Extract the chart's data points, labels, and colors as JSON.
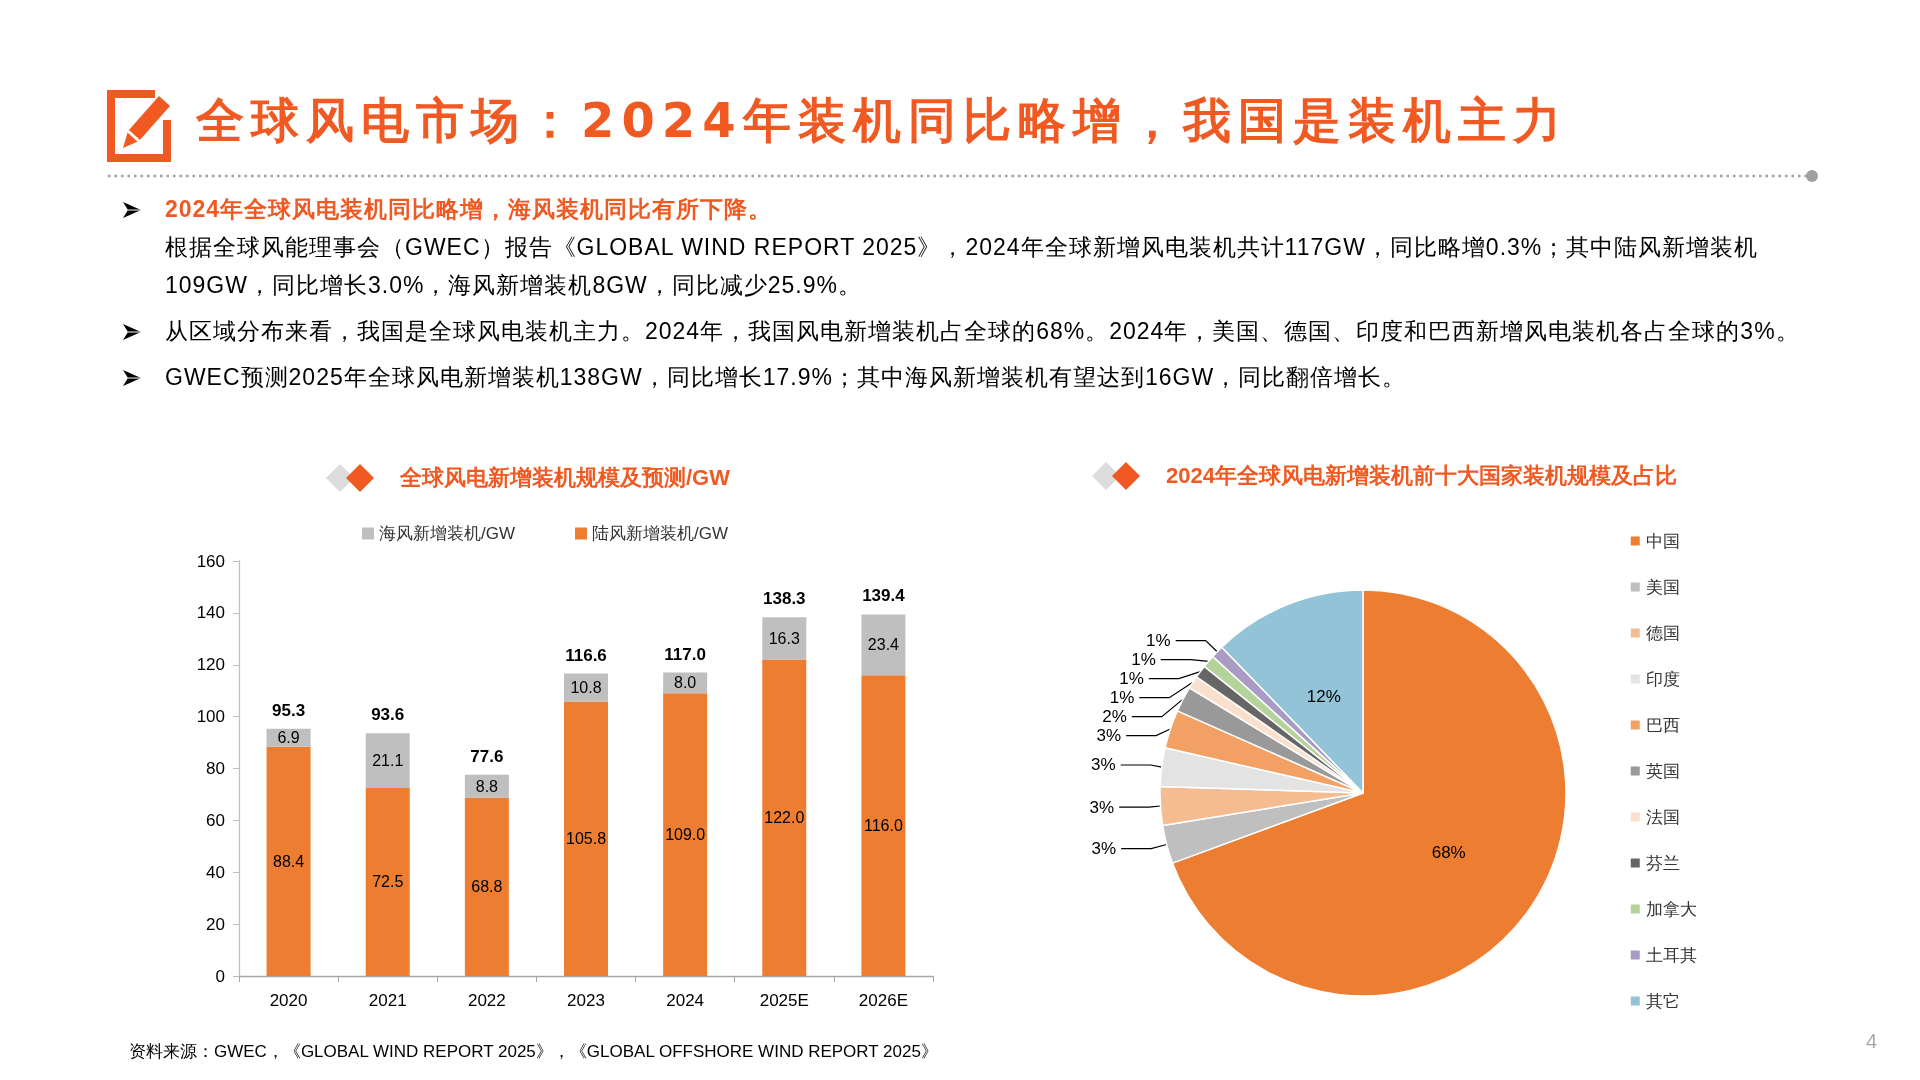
{
  "chart_data": [
    {
      "type": "other",
      "title": "全球风电市场：2024年装机同比略增，我国是装机主力",
      "annotations": [
        "2024年全球风电装机同比略增，海风装机同比有所下降。",
        "根据全球风能理事会（GWEC）报告《GLOBAL WIND REPORT 2025》，2024年全球新增风电装机共计117GW，同比略增0.3%；其中陆风新增装机109GW，同比增长3.0%，海风新增装机8GW，同比减少25.9%。",
        "从区域分布来看，我国是全球风电装机主力。2024年，我国风电新增装机占全球的68%。2024年，美国、德国、印度和巴西新增风电装机各占全球的3%。",
        "GWEC预测2025年全球风电新增装机138GW，同比增长17.9%；其中海风新增装机有望达到16GW，同比翻倍增长。",
        "资料来源：GWEC，《GLOBAL WIND REPORT 2025》，《GLOBAL OFFSHORE WIND REPORT 2025》",
        "4"
      ]
    },
    {
      "type": "bar",
      "title": "全球风电新增装机规模及预测/GW",
      "categories": [
        "2020",
        "2021",
        "2022",
        "2023",
        "2024",
        "2025E",
        "2026E"
      ],
      "stacked": true,
      "legend": "top",
      "ylim": [
        0,
        160
      ],
      "yticks": [
        0,
        20,
        40,
        60,
        80,
        100,
        120,
        140,
        160
      ],
      "series": [
        {
          "name": "陆风新增装机/GW",
          "color": "#ed7d31",
          "values": [
            88.4,
            72.5,
            68.8,
            105.8,
            109.0,
            122.0,
            116.0
          ],
          "value_labels": [
            "88.4",
            "72.5",
            "68.8",
            "105.8",
            "109.0",
            "122.0",
            "116.0"
          ]
        },
        {
          "name": "海风新增装机/GW",
          "color": "#bfbfbf",
          "values": [
            6.9,
            21.1,
            8.8,
            10.8,
            8.0,
            16.3,
            23.4
          ],
          "value_labels": [
            "6.9",
            "21.1",
            "8.8",
            "10.8",
            "8.0",
            "16.3",
            "23.4"
          ]
        }
      ],
      "totals": [
        "95.3",
        "93.6",
        "77.6",
        "116.6",
        "117.0",
        "138.3",
        "139.4"
      ]
    },
    {
      "type": "pie",
      "title": "2024年全球风电新增装机前十大国家装机规模及占比",
      "legend": "right",
      "categories": [
        "中国",
        "美国",
        "德国",
        "印度",
        "巴西",
        "英国",
        "法国",
        "芬兰",
        "加拿大",
        "土耳其",
        "其它"
      ],
      "values": [
        68,
        3,
        3,
        3,
        3,
        2,
        1,
        1,
        1,
        1,
        12
      ],
      "colors": [
        "#ed7d31",
        "#bfbfbf",
        "#f5bc92",
        "#e3e3e3",
        "#f2a064",
        "#999999",
        "#fbdfcd",
        "#666666",
        "#b4d39a",
        "#a99bc4",
        "#93c3d6"
      ],
      "value_labels": [
        "68%",
        "3%",
        "3%",
        "3%",
        "3%",
        "2%",
        "1%",
        "1%",
        "1%",
        "1%",
        "12%"
      ]
    }
  ]
}
